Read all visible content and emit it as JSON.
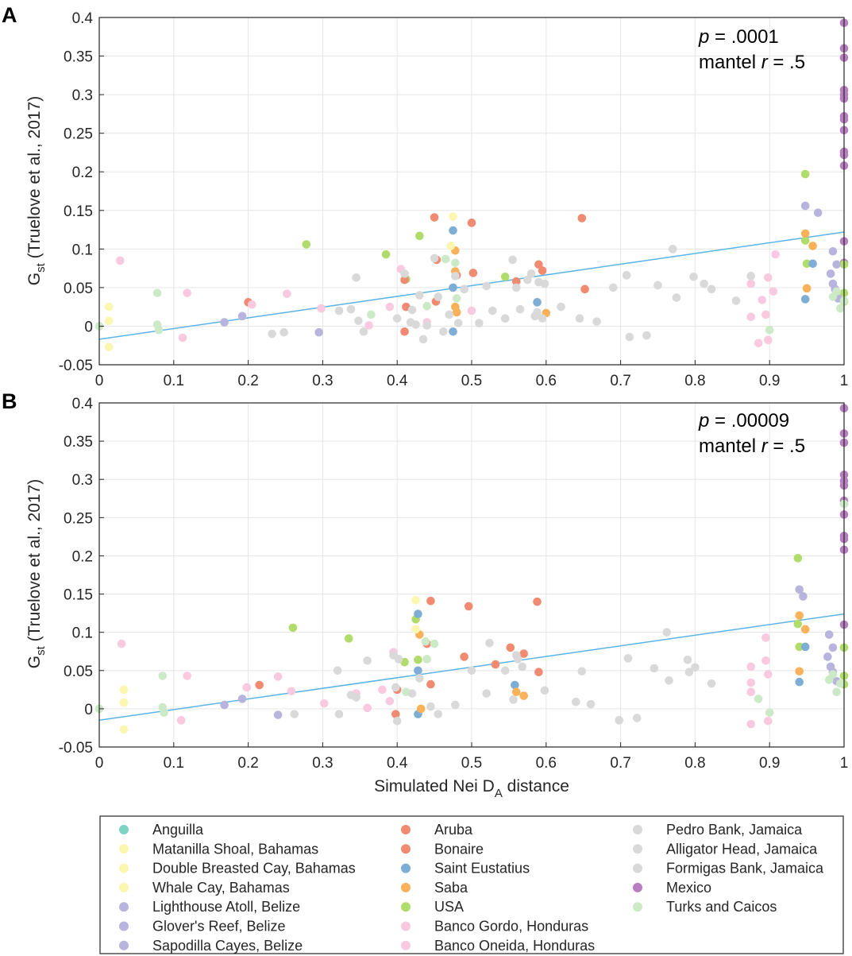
{
  "palette": {
    "Anguilla": "#7fd4c1",
    "Matanilla Shoal, Bahamas": "#fbf6b0",
    "Double Breasted Cay, Bahamas": "#fbf6b0",
    "Whale Cay, Bahamas": "#fbf6b0",
    "Lighthouse Atoll, Belize": "#b9b4dd",
    "Glover's Reef, Belize": "#b9b4dd",
    "Sapodilla Cayes, Belize": "#b9b4dd",
    "Aruba": "#f08a71",
    "Bonaire": "#f08a71",
    "Saint Eustatius": "#7eaed6",
    "Saba": "#f9b15a",
    "USA": "#b0dc6c",
    "Banco Gordo, Honduras": "#f9c9df",
    "Banco Oneida, Honduras": "#f9c9df",
    "Pedro Bank, Jamaica": "#d9d9d9",
    "Alligator Head, Jamaica": "#d9d9d9",
    "Formigas Bank, Jamaica": "#d9d9d9",
    "Mexico": "#b77ec0",
    "Turks and Caicos": "#cdeac8"
  },
  "regression_color": "#5bb3e6",
  "legend": [
    [
      "Anguilla",
      "Matanilla Shoal, Bahamas",
      "Double Breasted Cay, Bahamas",
      "Whale Cay, Bahamas",
      "Lighthouse Atoll, Belize",
      "Glover's Reef, Belize",
      "Sapodilla Cayes, Belize"
    ],
    [
      "Aruba",
      "Bonaire",
      "Saint Eustatius",
      "Saba",
      "USA",
      "Banco Gordo, Honduras",
      "Banco Oneida, Honduras"
    ],
    [
      "Pedro Bank, Jamaica",
      "Alligator Head, Jamaica",
      "Formigas Bank, Jamaica",
      "Mexico",
      "Turks and Caicos"
    ]
  ],
  "chart_data": [
    {
      "panel": "A",
      "type": "scatter",
      "title": "",
      "xlabel": "",
      "ylabel": "Gst (Truelove et al., 2017)",
      "xlim": [
        0,
        1
      ],
      "ylim": [
        -0.05,
        0.4
      ],
      "xticks": [
        "0",
        "0.1",
        "0.2",
        "0.3",
        "0.4",
        "0.5",
        "0.6",
        "0.7",
        "0.8",
        "0.9",
        "1"
      ],
      "yticks": [
        "-0.05",
        "0",
        "0.05",
        "0.1",
        "0.15",
        "0.2",
        "0.25",
        "0.3",
        "0.35",
        "0.4"
      ],
      "grid": true,
      "annotation": {
        "p_label": "p",
        "p_value": " = .0001",
        "mantel_label": "mantel ",
        "r_label": "r",
        "r_value": " = .5"
      },
      "regression": {
        "x": [
          0,
          1
        ],
        "y": [
          -0.017,
          0.122
        ]
      },
      "points": [
        {
          "group": "Mexico",
          "x": [
            1,
            1,
            1,
            1,
            1,
            1,
            1,
            1,
            1,
            1,
            1,
            1,
            1,
            1
          ],
          "y": [
            0.393,
            0.36,
            0.348,
            0.306,
            0.3,
            0.295,
            0.272,
            0.268,
            0.254,
            0.226,
            0.222,
            0.208,
            0.11,
            0.082
          ]
        },
        {
          "group": "USA",
          "x": [
            0.278,
            0.385,
            0.412,
            0.43,
            0.545,
            0.948,
            0.948,
            0.95,
            1,
            1,
            1
          ],
          "y": [
            0.106,
            0.093,
            0.061,
            0.117,
            0.064,
            0.197,
            0.111,
            0.081,
            0.08,
            0.043,
            0.032
          ]
        },
        {
          "group": "Aruba",
          "x": [
            0.2,
            0.41,
            0.412,
            0.452,
            0.453,
            0.5,
            0.502,
            0.56,
            0.59
          ],
          "y": [
            0.031,
            0.06,
            0.025,
            0.032,
            0.086,
            0.134,
            0.069,
            0.058,
            0.08
          ]
        },
        {
          "group": "Bonaire",
          "x": [
            0.41,
            0.45,
            0.48,
            0.595,
            0.648,
            0.652
          ],
          "y": [
            -0.007,
            0.141,
            0.066,
            0.072,
            0.14,
            0.048
          ]
        },
        {
          "group": "Saint Eustatius",
          "x": [
            0.475,
            0.475,
            0.475,
            0.588,
            0.948,
            0.958
          ],
          "y": [
            0.124,
            0.05,
            -0.007,
            0.031,
            0.035,
            0.081
          ]
        },
        {
          "group": "Saba",
          "x": [
            0.478,
            0.478,
            0.478,
            0.48,
            0.6,
            0.948,
            0.95,
            0.958
          ],
          "y": [
            0.098,
            0.071,
            0.025,
            0.018,
            0.017,
            0.12,
            0.049,
            0.104
          ]
        },
        {
          "group": "Lighthouse Atoll, Belize",
          "x": [
            0.168,
            0.192,
            0.295,
            0.948,
            0.965,
            0.985,
            0.99
          ],
          "y": [
            0.005,
            0.013,
            -0.008,
            0.156,
            0.147,
            0.097,
            0.08
          ]
        },
        {
          "group": "Glover's Reef, Belize",
          "x": [
            0.982,
            0.985,
            0.988,
            0.992
          ],
          "y": [
            0.068,
            0.055,
            0.048,
            0.036
          ]
        },
        {
          "group": "Banco Gordo, Honduras",
          "x": [
            0.028,
            0.118,
            0.205,
            0.252,
            0.298,
            0.405,
            0.44,
            0.5,
            0.875,
            0.89,
            0.898,
            0.905,
            0.908
          ],
          "y": [
            0.085,
            0.043,
            0.028,
            0.042,
            0.023,
            0.074,
            0.005,
            0.02,
            0.055,
            0.034,
            0.063,
            0.045,
            0.093
          ]
        },
        {
          "group": "Banco Oneida, Honduras",
          "x": [
            0.112,
            0.362,
            0.39,
            0.875,
            0.885,
            0.895,
            0.898
          ],
          "y": [
            -0.015,
            0.001,
            0.025,
            0.012,
            -0.022,
            0.015,
            -0.018
          ]
        },
        {
          "group": "Matanilla Shoal, Bahamas",
          "x": [
            0.013,
            0.013,
            0.013,
            0.475,
            0.472
          ],
          "y": [
            0.025,
            0.007,
            -0.027,
            0.142,
            0.104
          ]
        },
        {
          "group": "Turks and Caicos",
          "x": [
            0,
            0.078,
            0.078,
            0.08,
            0.365,
            0.44,
            0.465,
            0.478,
            0.48,
            0.9,
            0.985,
            0.99,
            0.995,
            1
          ],
          "y": [
            0,
            0.043,
            0.002,
            -0.005,
            0.015,
            0.026,
            0.087,
            0.082,
            0.036,
            -0.005,
            0.038,
            0.045,
            0.023,
            0.033
          ]
        },
        {
          "group": "Pedro Bank, Jamaica",
          "x": [
            0.232,
            0.248,
            0.322,
            0.338,
            0.345,
            0.348,
            0.355,
            0.4,
            0.41,
            0.418,
            0.42,
            0.425,
            0.43,
            0.435,
            0.44,
            0.45,
            0.455,
            0.462,
            0.47,
            0.478,
            0.482,
            0.49,
            0.51,
            0.52,
            0.528,
            0.545,
            0.555,
            0.56,
            0.565,
            0.575,
            0.58
          ],
          "y": [
            -0.01,
            -0.008,
            0.02,
            0.022,
            0.063,
            0.007,
            -0.007,
            0.01,
            0.068,
            0.005,
            0.021,
            0.002,
            0.04,
            -0.017,
            0.001,
            0.088,
            0.038,
            -0.007,
            0.015,
            0.065,
            0.004,
            0.048,
            0.004,
            0.052,
            0.02,
            0.01,
            0.086,
            0.05,
            0.022,
            0.06,
            0.068
          ]
        },
        {
          "group": "Alligator Head, Jamaica",
          "x": [
            0.585,
            0.588,
            0.59,
            0.595,
            0.598,
            0.62,
            0.645,
            0.668,
            0.69,
            0.708,
            0.712,
            0.735,
            0.75,
            0.77,
            0.775,
            0.798,
            0.812,
            0.822,
            0.855,
            0.875
          ],
          "y": [
            0.013,
            0.018,
            0.057,
            0.01,
            0.055,
            0.025,
            0.01,
            0.006,
            0.05,
            0.066,
            -0.014,
            -0.012,
            0.053,
            0.1,
            0.037,
            0.064,
            0.055,
            0.048,
            0.033,
            0.065
          ]
        }
      ]
    },
    {
      "panel": "B",
      "type": "scatter",
      "title": "",
      "xlabel": "Simulated Nei DA distance",
      "ylabel": "Gst (Truelove et al., 2017)",
      "xlim": [
        0,
        1
      ],
      "ylim": [
        -0.05,
        0.4
      ],
      "xticks": [
        "0",
        "0.1",
        "0.2",
        "0.3",
        "0.4",
        "0.5",
        "0.6",
        "0.7",
        "0.8",
        "0.9",
        "1"
      ],
      "yticks": [
        "-0.05",
        "0",
        "0.05",
        "0.1",
        "0.15",
        "0.2",
        "0.25",
        "0.3",
        "0.35",
        "0.4"
      ],
      "grid": true,
      "annotation": {
        "p_label": "p",
        "p_value": " = .00009",
        "mantel_label": "mantel ",
        "r_label": "r",
        "r_value": " = .5"
      },
      "regression": {
        "x": [
          0,
          1
        ],
        "y": [
          -0.015,
          0.124
        ]
      },
      "points": [
        {
          "group": "Mexico",
          "x": [
            1,
            1,
            1,
            1,
            1,
            1,
            1,
            1,
            1,
            1,
            1,
            1,
            1
          ],
          "y": [
            0.393,
            0.36,
            0.348,
            0.306,
            0.298,
            0.292,
            0.272,
            0.268,
            0.254,
            0.226,
            0.222,
            0.208,
            0.11
          ]
        },
        {
          "group": "USA",
          "x": [
            0.26,
            0.335,
            0.41,
            0.425,
            0.428,
            0.938,
            0.938,
            0.94,
            1,
            1,
            1
          ],
          "y": [
            0.106,
            0.092,
            0.061,
            0.117,
            0.064,
            0.197,
            0.111,
            0.081,
            0.08,
            0.043,
            0.032
          ]
        },
        {
          "group": "Aruba",
          "x": [
            0.215,
            0.4,
            0.445,
            0.49,
            0.532,
            0.552,
            0.57
          ],
          "y": [
            0.031,
            0.025,
            0.032,
            0.068,
            0.058,
            0.08,
            0.072
          ]
        },
        {
          "group": "Bonaire",
          "x": [
            0.398,
            0.445,
            0.44,
            0.496,
            0.588,
            0.59
          ],
          "y": [
            -0.007,
            0.141,
            0.085,
            0.134,
            0.14,
            0.048
          ]
        },
        {
          "group": "Saint Eustatius",
          "x": [
            0.428,
            0.428,
            0.428,
            0.558,
            0.94,
            0.948
          ],
          "y": [
            0.124,
            0.05,
            -0.007,
            0.031,
            0.035,
            0.081
          ]
        },
        {
          "group": "Saba",
          "x": [
            0.43,
            0.432,
            0.56,
            0.57,
            0.94,
            0.94,
            0.948
          ],
          "y": [
            0.097,
            0.0,
            0.022,
            0.017,
            0.122,
            0.049,
            0.104
          ]
        },
        {
          "group": "Lighthouse Atoll, Belize",
          "x": [
            0.168,
            0.192,
            0.24,
            0.94,
            0.945,
            0.98,
            0.985
          ],
          "y": [
            0.005,
            0.013,
            -0.008,
            0.156,
            0.147,
            0.097,
            0.08
          ]
        },
        {
          "group": "Glover's Reef, Belize",
          "x": [
            0.978,
            0.982,
            0.985,
            0.99
          ],
          "y": [
            0.068,
            0.055,
            0.048,
            0.036
          ]
        },
        {
          "group": "Banco Gordo, Honduras",
          "x": [
            0.03,
            0.118,
            0.198,
            0.24,
            0.258,
            0.302,
            0.345,
            0.38,
            0.39,
            0.395,
            0.875,
            0.875,
            0.895,
            0.895,
            0.898
          ],
          "y": [
            0.085,
            0.043,
            0.028,
            0.042,
            0.023,
            0.007,
            0.02,
            0.025,
            0.01,
            0.074,
            0.055,
            0.034,
            0.093,
            0.063,
            0.045
          ]
        },
        {
          "group": "Banco Oneida, Honduras",
          "x": [
            0.11,
            0.36,
            0.875,
            0.875,
            0.898
          ],
          "y": [
            -0.015,
            0.001,
            0.022,
            -0.02,
            -0.016
          ]
        },
        {
          "group": "Matanilla Shoal, Bahamas",
          "x": [
            0.033,
            0.033,
            0.033,
            0.425,
            0.425
          ],
          "y": [
            0.025,
            0.008,
            -0.027,
            0.142,
            0.104
          ]
        },
        {
          "group": "Turks and Caicos",
          "x": [
            0,
            0.085,
            0.085,
            0.087,
            0.412,
            0.438,
            0.44,
            0.45,
            0.885,
            0.9,
            0.98,
            0.985,
            0.99,
            0.995,
            1
          ],
          "y": [
            0,
            0.043,
            0.002,
            -0.005,
            0.022,
            0.088,
            0.065,
            0.085,
            0.013,
            -0.005,
            0.038,
            0.045,
            0.022,
            0.033,
            0.268
          ]
        },
        {
          "group": "Pedro Bank, Jamaica",
          "x": [
            0.262,
            0.32,
            0.322,
            0.338,
            0.345,
            0.36,
            0.395,
            0.398,
            0.4,
            0.402,
            0.42,
            0.43,
            0.445,
            0.455,
            0.478,
            0.5,
            0.52,
            0.524,
            0.545,
            0.556,
            0.56,
            0.562,
            0.568
          ],
          "y": [
            -0.007,
            0.05,
            -0.007,
            0.018,
            0.015,
            0.063,
            0.07,
            0.028,
            -0.016,
            0.065,
            0.02,
            0.04,
            0.003,
            -0.007,
            0.005,
            0.05,
            0.02,
            0.086,
            0.05,
            0.012,
            0.07,
            0.065,
            0.055
          ]
        },
        {
          "group": "Alligator Head, Jamaica",
          "x": [
            0.598,
            0.64,
            0.648,
            0.66,
            0.698,
            0.71,
            0.722,
            0.745,
            0.762,
            0.765,
            0.79,
            0.792,
            0.8,
            0.822
          ],
          "y": [
            0.024,
            0.009,
            0.049,
            0.006,
            -0.015,
            0.066,
            -0.012,
            0.053,
            0.1,
            0.037,
            0.064,
            0.048,
            0.054,
            0.033
          ]
        }
      ]
    }
  ]
}
